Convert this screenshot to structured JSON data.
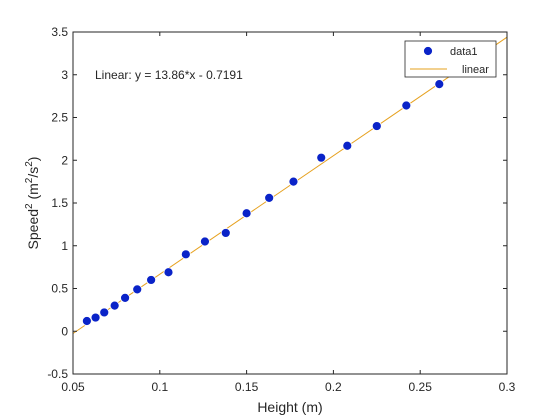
{
  "chart_data": {
    "type": "scatter",
    "xlabel": "Height (m)",
    "ylabel": {
      "base": "Speed",
      "sup": "2",
      "unit_open": " (m",
      "unit_sup1": "2",
      "unit_mid": "/s",
      "unit_sup2": "2",
      "unit_close": ")"
    },
    "xlim": [
      0.05,
      0.3
    ],
    "ylim": [
      -0.5,
      3.5
    ],
    "x_ticks": [
      0.05,
      0.1,
      0.15,
      0.2,
      0.25,
      0.3
    ],
    "y_ticks": [
      -0.5,
      0,
      0.5,
      1,
      1.5,
      2,
      2.5,
      3,
      3.5
    ],
    "x_tick_labels": [
      "0.05",
      "0.1",
      "0.15",
      "0.2",
      "0.25",
      "0.3"
    ],
    "y_tick_labels": [
      "-0.5",
      "0",
      "0.5",
      "1",
      "1.5",
      "2",
      "2.5",
      "3",
      "3.5"
    ],
    "grid": false,
    "legend_position": "top-right",
    "annotation": "Linear:  y = 13.86*x - 0.7191",
    "series": [
      {
        "name": "data1",
        "kind": "markers",
        "color": "#0a23c8",
        "x": [
          0.058,
          0.063,
          0.068,
          0.074,
          0.08,
          0.087,
          0.095,
          0.105,
          0.115,
          0.126,
          0.138,
          0.15,
          0.163,
          0.177,
          0.193,
          0.208,
          0.225,
          0.242,
          0.261
        ],
        "y": [
          0.12,
          0.16,
          0.22,
          0.3,
          0.39,
          0.49,
          0.6,
          0.69,
          0.9,
          1.05,
          1.15,
          1.38,
          1.56,
          1.75,
          2.03,
          2.17,
          2.4,
          2.64,
          2.89
        ]
      },
      {
        "name": "linear",
        "kind": "line",
        "color": "#e6a11e",
        "slope": 13.86,
        "intercept": -0.7191
      }
    ]
  }
}
